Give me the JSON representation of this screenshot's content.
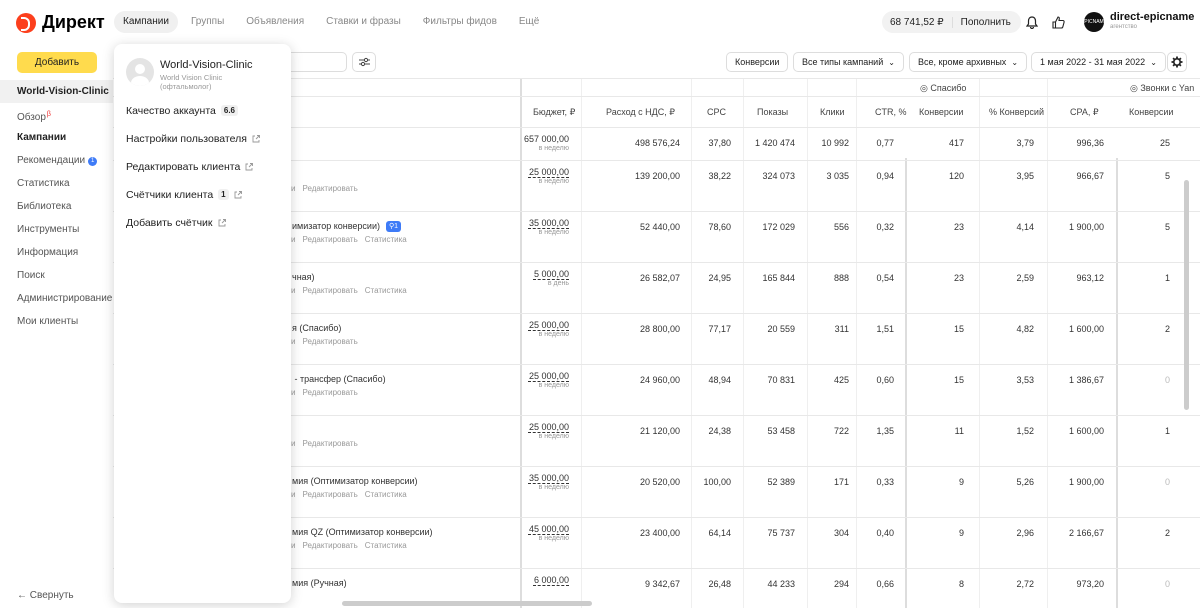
{
  "header": {
    "logo_text": "Директ",
    "nav": [
      {
        "label": "Кампании",
        "active": true
      },
      {
        "label": "Группы",
        "active": false
      },
      {
        "label": "Объявления",
        "active": false
      },
      {
        "label": "Ставки и фразы",
        "active": false
      },
      {
        "label": "Фильтры фидов",
        "active": false
      },
      {
        "label": "Ещё",
        "active": false
      }
    ],
    "balance": "68 741,52 ₽",
    "topup": "Пополнить",
    "account_name": "direct-epicname",
    "account_sub": "агентство",
    "account_logo_text": "EPICNAME"
  },
  "sidebar": {
    "add_button": "Добавить",
    "client": "World-Vision-Clinic",
    "items": [
      {
        "label": "Обзор",
        "mark": "β"
      },
      {
        "label": "Кампании",
        "active": true
      },
      {
        "label": "Рекомендации",
        "badge": "1"
      },
      {
        "label": "Статистика"
      },
      {
        "label": "Библиотека"
      },
      {
        "label": "Инструменты"
      },
      {
        "label": "Информация"
      },
      {
        "label": "Поиск"
      },
      {
        "label": "Администрирование"
      },
      {
        "label": "Мои клиенты"
      }
    ],
    "collapse": "Свернуть"
  },
  "filters": {
    "conversions": "Конверсии",
    "campaign_types": "Все типы кампаний",
    "status": "Все, кроме архивных",
    "dates": "1 мая 2022 - 31 мая 2022"
  },
  "popup": {
    "client_name": "World-Vision-Clinic",
    "client_sub1": "World Vision Clinic",
    "client_sub2": "(офтальмолог)",
    "quality_label": "Качество аккаунта",
    "quality_value": "6.6",
    "user_settings": "Настройки пользователя",
    "edit_client": "Редактировать клиента",
    "counters": "Счётчики клиента",
    "counters_count": "1",
    "add_counter": "Добавить счётчик"
  },
  "table": {
    "groups": {
      "thanks": "Спасибо",
      "calls": "Звонки с Yan"
    },
    "headers": {
      "budget": "Бюджет, ₽",
      "spend": "Расход с НДС, ₽",
      "cpc": "CPC",
      "impressions": "Показы",
      "clicks": "Клики",
      "ctr": "CTR, %",
      "conv": "Конверсии",
      "conv_pct": "% Конверсий",
      "cpa": "CPA, ₽",
      "conv2": "Конверсии"
    },
    "total": {
      "budget": "657 000,00",
      "period": "в неделю",
      "spend": "498 576,24",
      "cpc": "37,80",
      "impressions": "1 420 474",
      "clicks": "10 992",
      "ctr": "0,77",
      "conv": "417",
      "conv_pct": "3,79",
      "cpa": "996,36",
      "conv2": "25"
    },
    "rows": [
      {
        "name": "",
        "pin": "",
        "actions": [
          "…и",
          "Редактировать"
        ],
        "budget": "25 000,00",
        "period": "в неделю",
        "spend": "139 200,00",
        "cpc": "38,22",
        "impressions": "324 073",
        "clicks": "3 035",
        "ctr": "0,94",
        "conv": "120",
        "conv_pct": "3,95",
        "cpa": "966,67",
        "conv2": "5"
      },
      {
        "name": "…имизатор конверсии)",
        "pin": "1",
        "actions": [
          "…и",
          "Редактировать",
          "Статистика"
        ],
        "budget": "35 000,00",
        "period": "в неделю",
        "spend": "52 440,00",
        "cpc": "78,60",
        "impressions": "172 029",
        "clicks": "556",
        "ctr": "0,32",
        "conv": "23",
        "conv_pct": "4,14",
        "cpa": "1 900,00",
        "conv2": "5"
      },
      {
        "name": "…чная)",
        "pin": "",
        "actions": [
          "…и",
          "Редактировать",
          "Статистика"
        ],
        "budget": "5 000,00",
        "period": "в день",
        "spend": "26 582,07",
        "cpc": "24,95",
        "impressions": "165 844",
        "clicks": "888",
        "ctr": "0,54",
        "conv": "23",
        "conv_pct": "2,59",
        "cpa": "963,12",
        "conv2": "1"
      },
      {
        "name": "…я (Спасибо)",
        "pin": "",
        "actions": [
          "…и",
          "Редактировать"
        ],
        "budget": "25 000,00",
        "period": "в неделю",
        "spend": "28 800,00",
        "cpc": "77,17",
        "impressions": "20 559",
        "clicks": "311",
        "ctr": "1,51",
        "conv": "15",
        "conv_pct": "4,82",
        "cpa": "1 600,00",
        "conv2": "2"
      },
      {
        "name": "… - трансфер (Спасибо)",
        "pin": "",
        "actions": [
          "…и",
          "Редактировать"
        ],
        "budget": "25 000,00",
        "period": "в неделю",
        "spend": "24 960,00",
        "cpc": "48,94",
        "impressions": "70 831",
        "clicks": "425",
        "ctr": "0,60",
        "conv": "15",
        "conv_pct": "3,53",
        "cpa": "1 386,67",
        "conv2": "0"
      },
      {
        "name": "",
        "pin": "",
        "actions": [
          "…и",
          "Редактировать"
        ],
        "budget": "25 000,00",
        "period": "в неделю",
        "spend": "21 120,00",
        "cpc": "24,38",
        "impressions": "53 458",
        "clicks": "722",
        "ctr": "1,35",
        "conv": "11",
        "conv_pct": "1,52",
        "cpa": "1 600,00",
        "conv2": "1"
      },
      {
        "name": "…мия (Оптимизатор конверсии)",
        "pin": "",
        "actions": [
          "…и",
          "Редактировать",
          "Статистика"
        ],
        "budget": "35 000,00",
        "period": "в неделю",
        "spend": "20 520,00",
        "cpc": "100,00",
        "impressions": "52 389",
        "clicks": "171",
        "ctr": "0,33",
        "conv": "9",
        "conv_pct": "5,26",
        "cpa": "1 900,00",
        "conv2": "0"
      },
      {
        "name": "…мия QZ (Оптимизатор конверсии)",
        "pin": "",
        "actions": [
          "…и",
          "Редактировать",
          "Статистика"
        ],
        "budget": "45 000,00",
        "period": "в неделю",
        "spend": "23 400,00",
        "cpc": "64,14",
        "impressions": "75 737",
        "clicks": "304",
        "ctr": "0,40",
        "conv": "9",
        "conv_pct": "2,96",
        "cpa": "2 166,67",
        "conv2": "2"
      },
      {
        "name": "…мия (Ручная)",
        "pin": "",
        "actions": [],
        "budget": "6 000,00",
        "period": "",
        "spend": "9 342,67",
        "cpc": "26,48",
        "impressions": "44 233",
        "clicks": "294",
        "ctr": "0,66",
        "conv": "8",
        "conv_pct": "2,72",
        "cpa": "973,20",
        "conv2": "0"
      }
    ]
  }
}
